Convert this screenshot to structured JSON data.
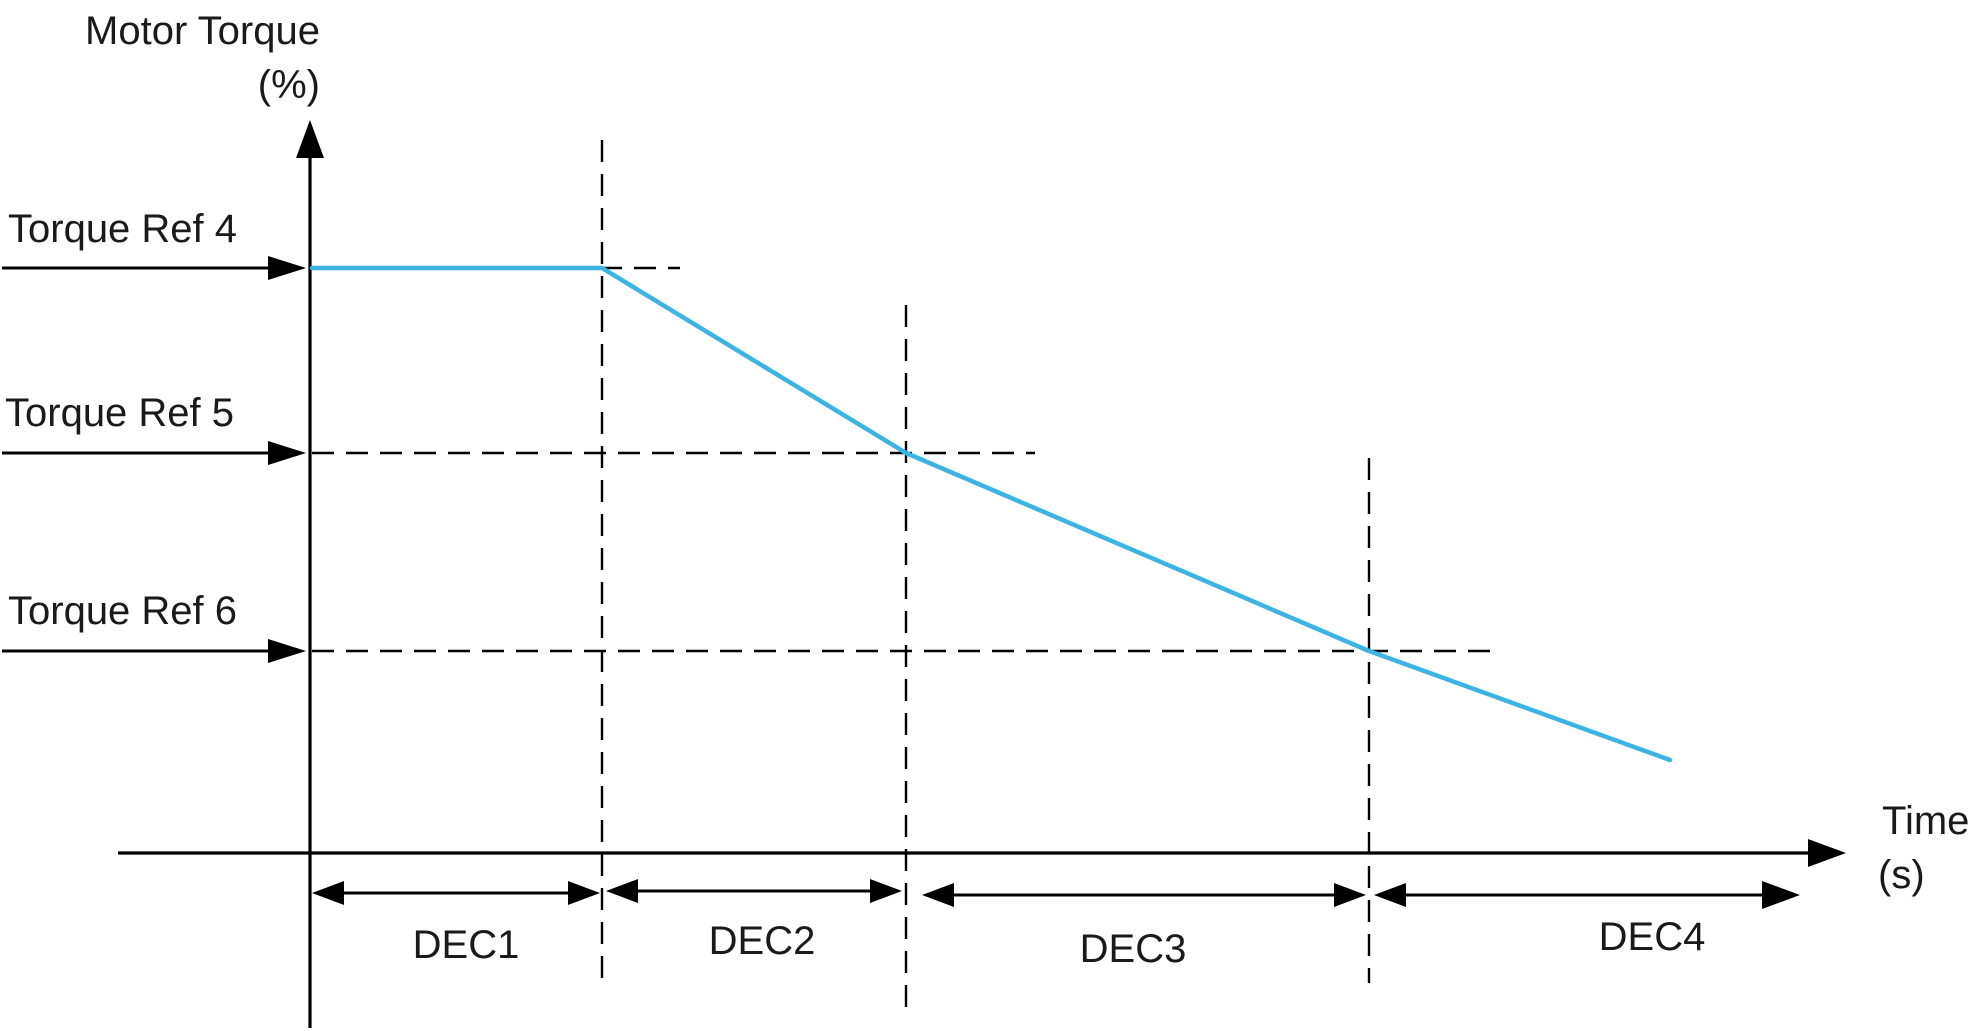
{
  "y_axis": {
    "line1": "Motor Torque",
    "line2": "(%)"
  },
  "x_axis": {
    "line1": "Time",
    "line2": "(s)"
  },
  "torque_refs": [
    {
      "label": "Torque Ref 4"
    },
    {
      "label": "Torque Ref 5"
    },
    {
      "label": "Torque Ref 6"
    }
  ],
  "phases": [
    {
      "label": "DEC1"
    },
    {
      "label": "DEC2"
    },
    {
      "label": "DEC3"
    },
    {
      "label": "DEC4"
    }
  ],
  "colors": {
    "curve": "#3db3e3",
    "lines": "#000000"
  }
}
